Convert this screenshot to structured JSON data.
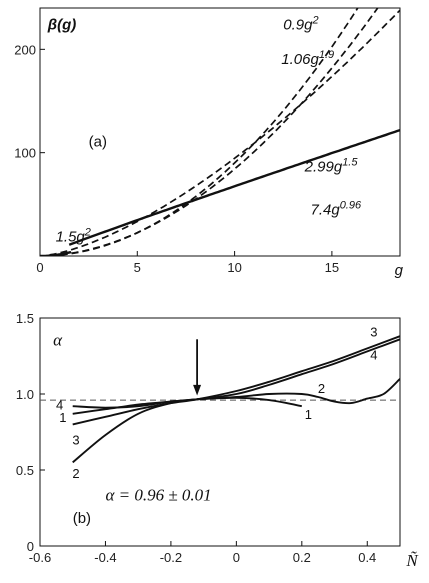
{
  "chart_data": [
    {
      "type": "line",
      "panel_label": "(a)",
      "ylabel": "β(g)",
      "xlabel": "g",
      "xlim": [
        0,
        18.5
      ],
      "ylim": [
        0,
        240
      ],
      "xticks": [
        0,
        5,
        10,
        15
      ],
      "yticks": [
        100,
        200
      ],
      "series": [
        {
          "name": "1.5g2",
          "label_base": "1.5g",
          "label_exp": "2",
          "style": "solid",
          "fn": {
            "type": "power",
            "a": 1.5,
            "b": 2
          },
          "x_range": [
            0,
            1.6
          ]
        },
        {
          "name": "0.9g2",
          "label_base": "0.9g",
          "label_exp": "2",
          "style": "dashed",
          "fn": {
            "type": "power",
            "a": 0.9,
            "b": 2
          },
          "x_range": [
            0.5,
            18.5
          ]
        },
        {
          "name": "1.06g1.9",
          "label_base": "1.06g",
          "label_exp": "1.9",
          "style": "dashed",
          "fn": {
            "type": "power",
            "a": 1.06,
            "b": 1.9
          },
          "x_range": [
            0.5,
            18.5
          ]
        },
        {
          "name": "2.99g1.5",
          "label_base": "2.99g",
          "label_exp": "1.5",
          "style": "dashed",
          "fn": {
            "type": "power",
            "a": 2.99,
            "b": 1.5
          },
          "x_range": [
            0.5,
            18.5
          ]
        },
        {
          "name": "7.4g0.96",
          "label_base": "7.4g",
          "label_exp": "0.96",
          "style": "solid",
          "fn": {
            "type": "power",
            "a": 7.4,
            "b": 0.96
          },
          "x_range": [
            1.5,
            18.5
          ]
        }
      ]
    },
    {
      "type": "line",
      "panel_label": "(b)",
      "ylabel": "α",
      "xlabel": "Ñ",
      "xlim": [
        -0.6,
        0.5
      ],
      "ylim": [
        0,
        1.5
      ],
      "xticks": [
        -0.6,
        -0.4,
        -0.2,
        0,
        0.2,
        0.4
      ],
      "xtick_labels": [
        "-0.6",
        "-0.4",
        "-0.2",
        "0",
        "0.2",
        "0.4"
      ],
      "yticks": [
        0,
        0.5,
        1.0,
        1.5
      ],
      "ytick_labels": [
        "0",
        "0.5",
        "1.0",
        "1.5"
      ],
      "reference_line": {
        "y": 0.96,
        "style": "dashed"
      },
      "arrow_at_x": -0.12,
      "annotation": "α = 0.96 ± 0.01",
      "series": [
        {
          "name": "1",
          "x": [
            -0.5,
            -0.4,
            -0.3,
            -0.2,
            -0.12,
            0.0,
            0.1,
            0.2
          ],
          "y": [
            0.87,
            0.9,
            0.93,
            0.95,
            0.965,
            0.975,
            0.96,
            0.92
          ]
        },
        {
          "name": "2",
          "x": [
            -0.5,
            -0.4,
            -0.3,
            -0.2,
            -0.12,
            0.0,
            0.1,
            0.2,
            0.25,
            0.3,
            0.35,
            0.4,
            0.45,
            0.5
          ],
          "y": [
            0.55,
            0.73,
            0.87,
            0.94,
            0.965,
            0.98,
            1.0,
            1.0,
            0.98,
            0.95,
            0.94,
            0.97,
            1.0,
            1.1
          ]
        },
        {
          "name": "3",
          "x": [
            -0.5,
            -0.4,
            -0.3,
            -0.2,
            -0.12,
            0.0,
            0.1,
            0.2,
            0.3,
            0.4,
            0.5
          ],
          "y": [
            0.8,
            0.85,
            0.9,
            0.94,
            0.965,
            1.02,
            1.08,
            1.15,
            1.22,
            1.3,
            1.38
          ]
        },
        {
          "name": "4",
          "x": [
            -0.5,
            -0.4,
            -0.3,
            -0.2,
            -0.12,
            0.0,
            0.1,
            0.2,
            0.3,
            0.4,
            0.5
          ],
          "y": [
            0.92,
            0.91,
            0.92,
            0.95,
            0.965,
            1.0,
            1.06,
            1.13,
            1.2,
            1.28,
            1.36
          ]
        }
      ],
      "curve_labels": [
        {
          "series": "1",
          "label": "1",
          "x": -0.53,
          "y": 0.85
        },
        {
          "series": "1",
          "label": "1",
          "x": 0.22,
          "y": 0.87
        },
        {
          "series": "2",
          "label": "2",
          "x": -0.49,
          "y": 0.48
        },
        {
          "series": "2",
          "label": "2",
          "x": 0.26,
          "y": 1.04
        },
        {
          "series": "3",
          "label": "3",
          "x": -0.49,
          "y": 0.7
        },
        {
          "series": "3",
          "label": "3",
          "x": 0.42,
          "y": 1.41
        },
        {
          "series": "4",
          "label": "4",
          "x": -0.54,
          "y": 0.93
        },
        {
          "series": "4",
          "label": "4",
          "x": 0.42,
          "y": 1.26
        }
      ]
    }
  ]
}
